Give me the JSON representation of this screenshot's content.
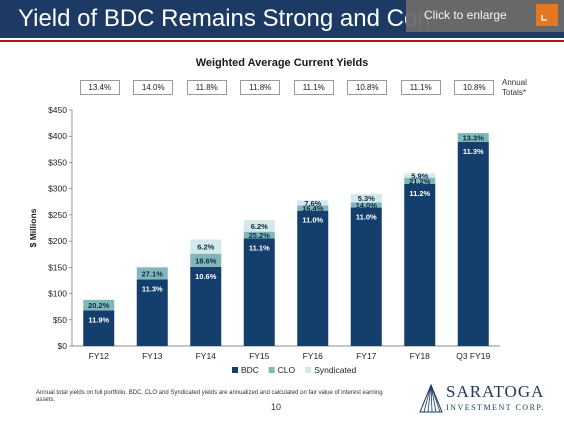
{
  "slide": {
    "title": "Yield of BDC Remains Strong and Con",
    "enlarge_label": "Click to enlarge",
    "page_number": "10",
    "footnote": "Annual total yields on full portfolio. BDC, CLO and Syndicated yields are annualized and calculated on fair value of interest earning assets.",
    "logo_name": "SARATOGA",
    "logo_sub": "INVESTMENT CORP.",
    "totals_label_line1": "Annual",
    "totals_label_line2": "Totals*",
    "annual_totals": [
      "13.4%",
      "14.0%",
      "11.8%",
      "11.8%",
      "11.1%",
      "10.8%",
      "11.1%",
      "10.8%"
    ]
  },
  "colors": {
    "title_bar": "#1c3a63",
    "accent_red": "#b5121b",
    "bdc": "#143e6b",
    "clo": "#80b7b9",
    "syndicated": "#d3e9ea",
    "enlarge_icon": "#f07b1e"
  },
  "chart_data": {
    "type": "bar",
    "stacked": true,
    "title": "Weighted Average Current Yields",
    "ylabel": "$ Millions",
    "ylim": [
      0,
      450
    ],
    "yticks": [
      0,
      50,
      100,
      150,
      200,
      250,
      300,
      350,
      400,
      450
    ],
    "ytick_labels": [
      "$0",
      "$50",
      "$100",
      "$150",
      "$200",
      "$250",
      "$300",
      "$350",
      "$400",
      "$450"
    ],
    "categories": [
      "FY12",
      "FY13",
      "FY14",
      "FY15",
      "FY16",
      "FY17",
      "FY18",
      "Q3 FY19"
    ],
    "legend_position": "bottom",
    "grid": false,
    "series": [
      {
        "name": "BDC",
        "values": [
          68,
          127,
          151,
          205,
          258,
          264,
          309,
          389
        ],
        "labels": [
          "11.9%",
          "11.3%",
          "10.6%",
          "11.1%",
          "11.0%",
          "11.0%",
          "11.2%",
          "11.3%"
        ]
      },
      {
        "name": "CLO",
        "values": [
          20,
          23,
          25,
          13,
          10,
          10,
          12,
          17
        ],
        "labels": [
          "20.2%",
          "27.1%",
          "18.6%",
          "25.2%",
          "16.4%",
          "14.0%",
          "21.2%",
          "13.3%"
        ]
      },
      {
        "name": "Syndicated",
        "values": [
          0,
          0,
          27,
          22,
          10,
          16,
          8,
          0
        ],
        "labels": [
          "",
          "",
          "6.2%",
          "6.2%",
          "7.6%",
          "5.3%",
          "5.9%",
          ""
        ]
      }
    ]
  }
}
